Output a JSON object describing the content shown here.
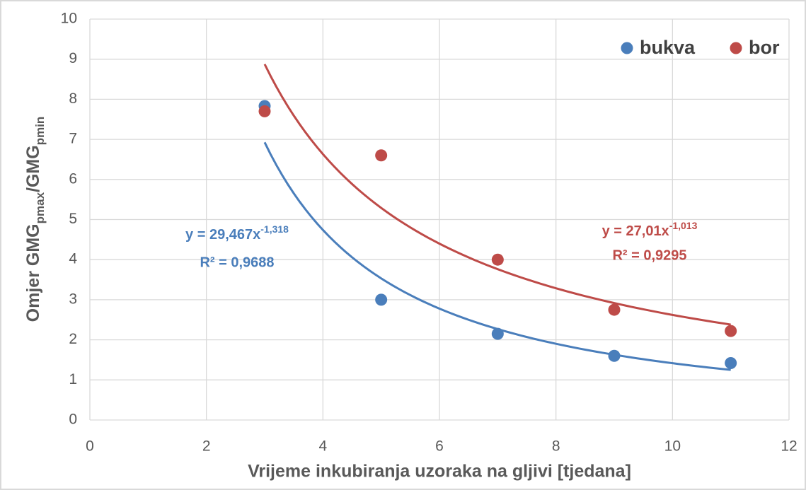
{
  "chart_data": {
    "type": "scatter",
    "xlabel": "Vrijeme inkubiranja uzoraka na gljivi [tjedana]",
    "ylabel": [
      "Omjer GMG",
      "pmax",
      "/GMG",
      "pmin"
    ],
    "x": [
      3,
      5,
      7,
      9,
      11
    ],
    "series": [
      {
        "name": "bukva",
        "color": "#4a7ebb",
        "values": [
          7.83,
          3.0,
          2.15,
          1.6,
          1.42
        ],
        "trendline": {
          "a": 29.467,
          "b": -1.318,
          "equation": "y = 29,467x",
          "exponent": "-1,318",
          "r_squared": "R² = 0,9688"
        }
      },
      {
        "name": "bor",
        "color": "#be4b48",
        "values": [
          7.7,
          6.6,
          4.0,
          2.75,
          2.22
        ],
        "trendline": {
          "a": 27.01,
          "b": -1.013,
          "equation": "y = 27,01x",
          "exponent": "-1,013",
          "r_squared": "R² = 0,9295"
        }
      }
    ],
    "xlim": [
      0,
      12
    ],
    "xticks": [
      0,
      2,
      4,
      6,
      8,
      10,
      12
    ],
    "ylim": [
      0,
      10
    ],
    "yticks": [
      0,
      1,
      2,
      3,
      4,
      5,
      6,
      7,
      8,
      9,
      10
    ],
    "grid": true,
    "legend": "top-right"
  }
}
